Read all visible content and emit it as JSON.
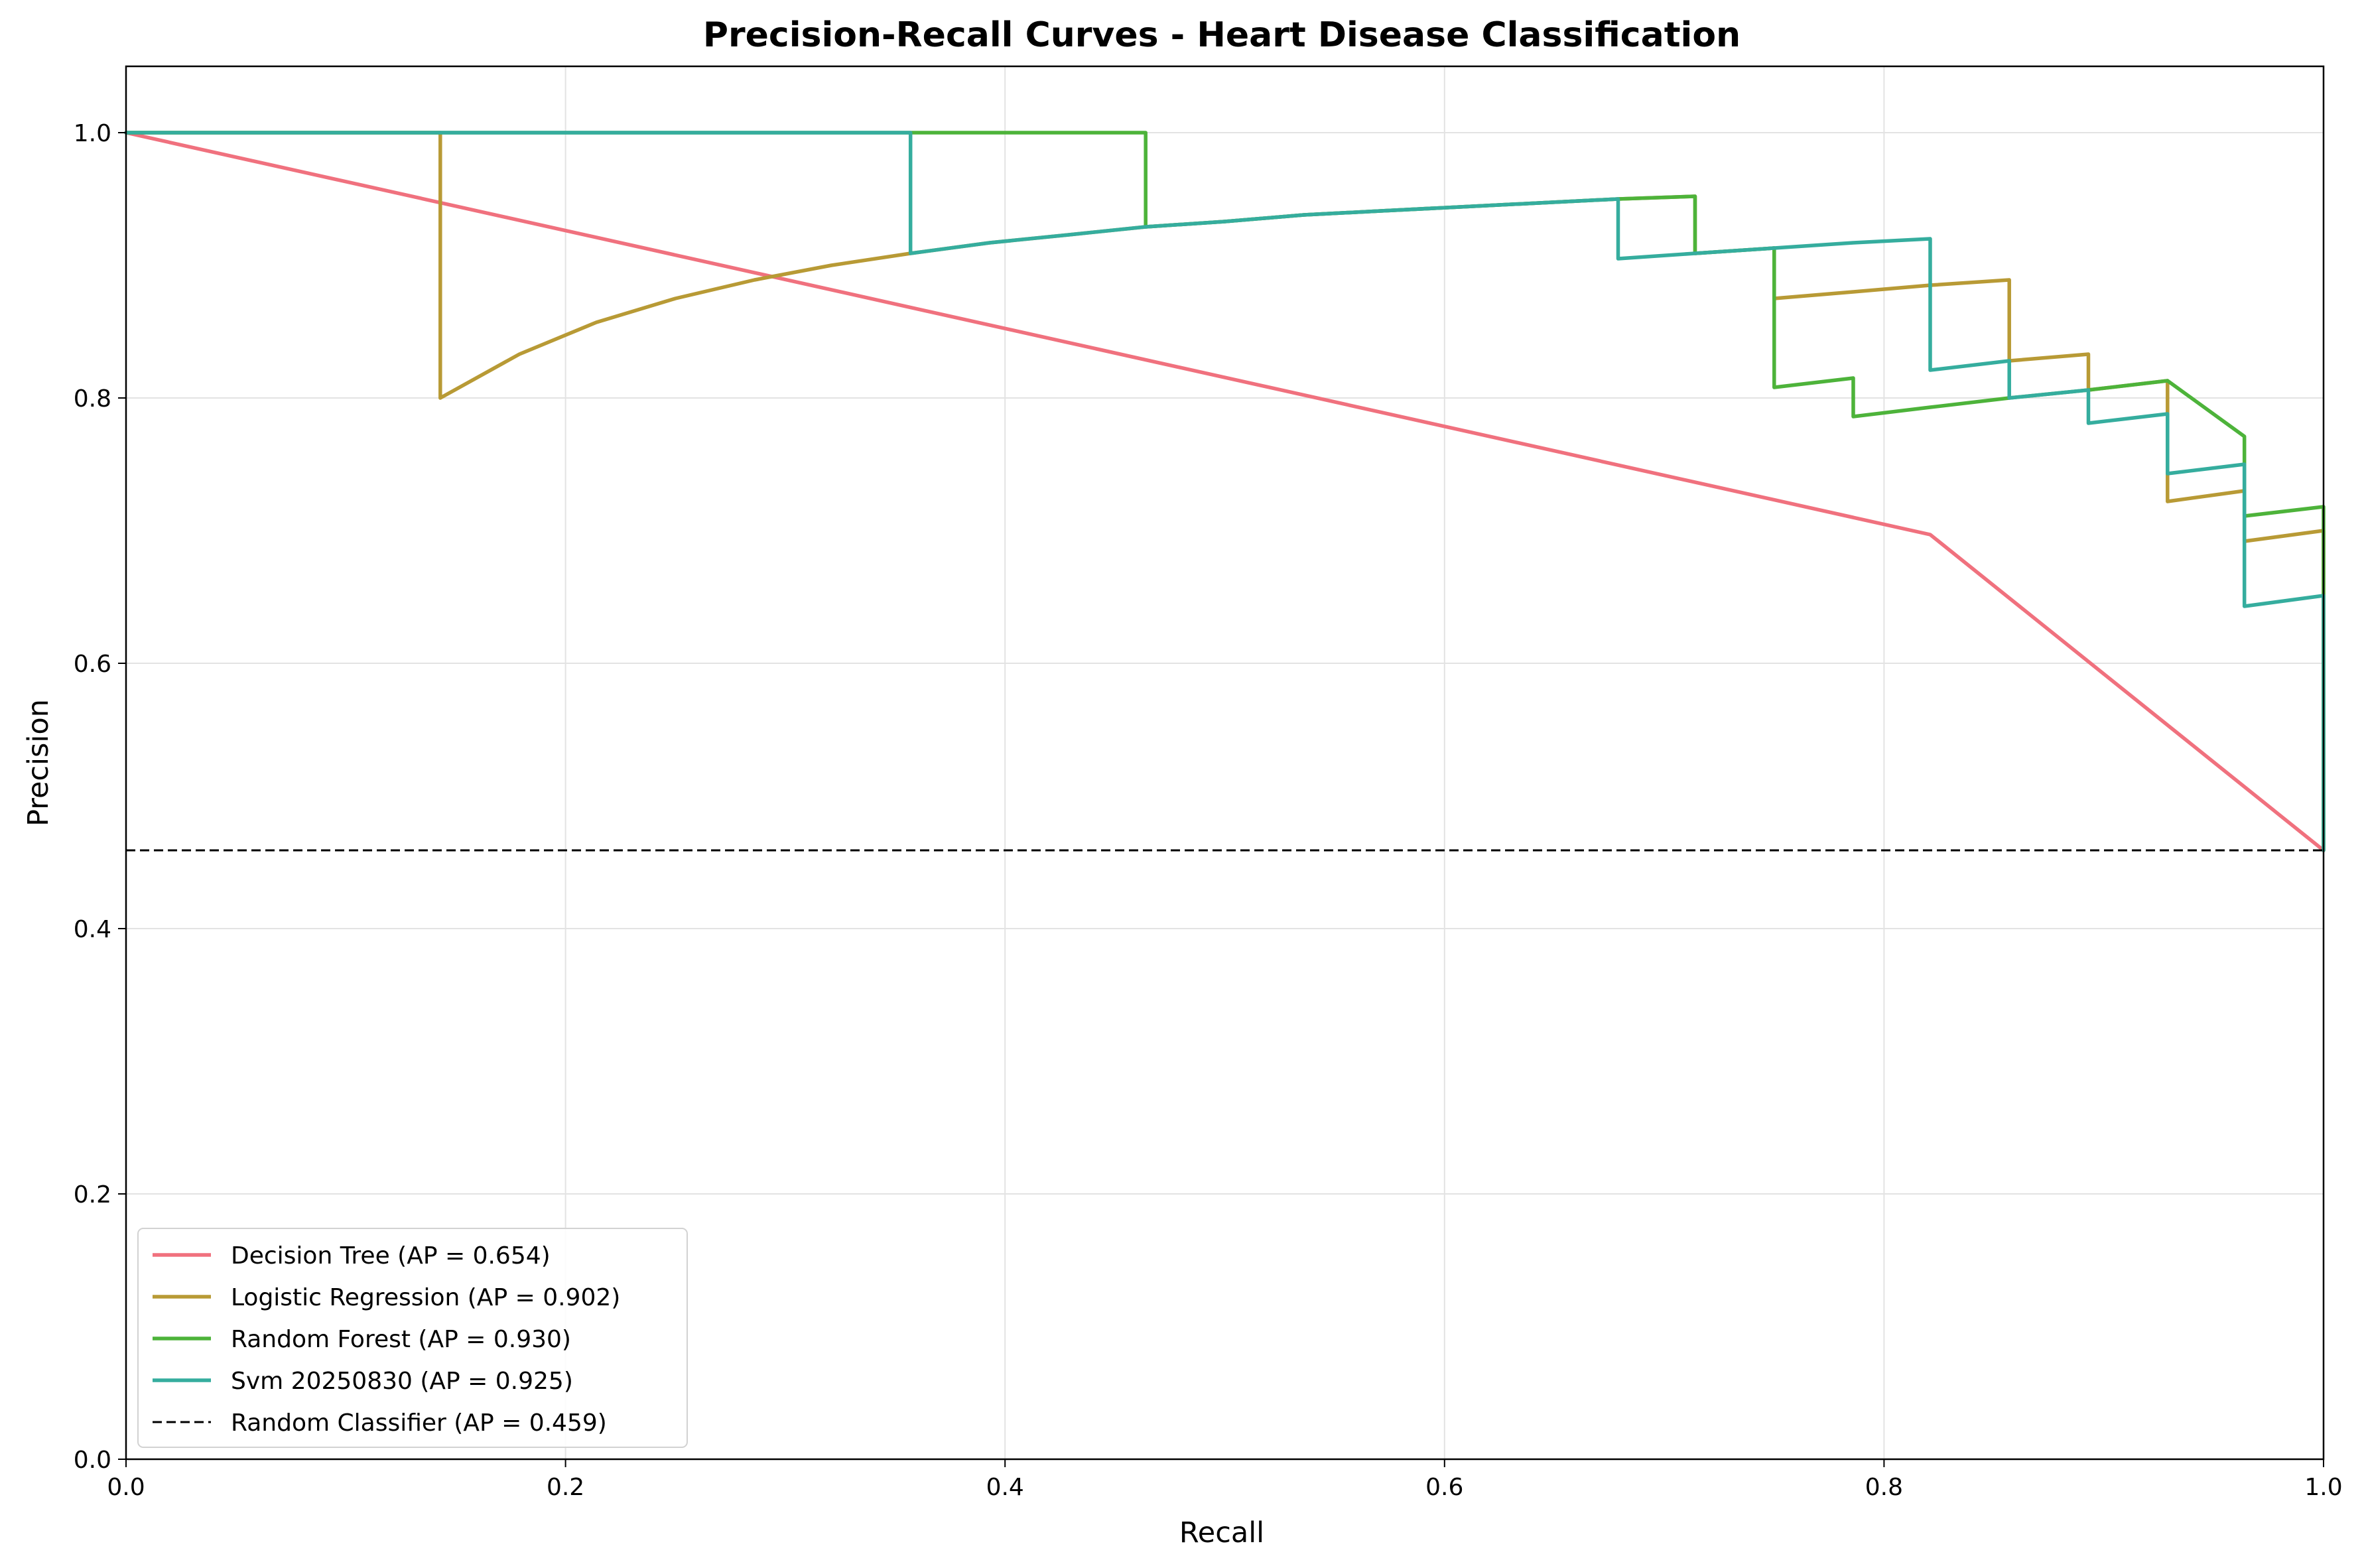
{
  "chart_data": {
    "type": "line",
    "title": "Precision-Recall Curves - Heart Disease Classification",
    "xlabel": "Recall",
    "ylabel": "Precision",
    "xlim": [
      0,
      1
    ],
    "ylim": [
      0,
      1.05
    ],
    "xticks": [
      0.0,
      0.2,
      0.4,
      0.6,
      0.8,
      1.0
    ],
    "xtick_labels": [
      "0.0",
      "0.2",
      "0.4",
      "0.6",
      "0.8",
      "1.0"
    ],
    "yticks": [
      0.0,
      0.2,
      0.4,
      0.6,
      0.8,
      1.0
    ],
    "ytick_labels": [
      "0.0",
      "0.2",
      "0.4",
      "0.6",
      "0.8",
      "1.0"
    ],
    "grid": true,
    "legend_position": "lower-left",
    "series": [
      {
        "name": "Decision Tree (AP = 0.654)",
        "color": "#f0717e",
        "dash": false,
        "points": [
          [
            0.0,
            1.0
          ],
          [
            0.821,
            0.697
          ],
          [
            1.0,
            0.459
          ]
        ]
      },
      {
        "name": "Logistic Regression (AP = 0.902)",
        "color": "#b89a35",
        "dash": false,
        "points": [
          [
            0.0,
            1.0
          ],
          [
            0.143,
            1.0
          ],
          [
            0.143,
            0.8
          ],
          [
            0.179,
            0.833
          ],
          [
            0.214,
            0.857
          ],
          [
            0.25,
            0.875
          ],
          [
            0.286,
            0.889
          ],
          [
            0.321,
            0.9
          ],
          [
            0.357,
            0.909
          ],
          [
            0.393,
            0.917
          ],
          [
            0.429,
            0.923
          ],
          [
            0.464,
            0.929
          ],
          [
            0.5,
            0.933
          ],
          [
            0.536,
            0.938
          ],
          [
            0.571,
            0.941
          ],
          [
            0.607,
            0.944
          ],
          [
            0.643,
            0.947
          ],
          [
            0.679,
            0.95
          ],
          [
            0.714,
            0.952
          ],
          [
            0.714,
            0.909
          ],
          [
            0.75,
            0.913
          ],
          [
            0.75,
            0.875
          ],
          [
            0.786,
            0.88
          ],
          [
            0.821,
            0.885
          ],
          [
            0.857,
            0.889
          ],
          [
            0.857,
            0.828
          ],
          [
            0.893,
            0.833
          ],
          [
            0.893,
            0.806
          ],
          [
            0.929,
            0.813
          ],
          [
            0.929,
            0.722
          ],
          [
            0.964,
            0.73
          ],
          [
            0.964,
            0.692
          ],
          [
            1.0,
            0.7
          ],
          [
            1.0,
            0.459
          ]
        ]
      },
      {
        "name": "Random Forest (AP = 0.930)",
        "color": "#4db33a",
        "dash": false,
        "points": [
          [
            0.0,
            1.0
          ],
          [
            0.464,
            1.0
          ],
          [
            0.464,
            0.929
          ],
          [
            0.5,
            0.933
          ],
          [
            0.536,
            0.938
          ],
          [
            0.571,
            0.941
          ],
          [
            0.607,
            0.944
          ],
          [
            0.643,
            0.947
          ],
          [
            0.679,
            0.95
          ],
          [
            0.714,
            0.952
          ],
          [
            0.714,
            0.909
          ],
          [
            0.75,
            0.913
          ],
          [
            0.75,
            0.808
          ],
          [
            0.786,
            0.815
          ],
          [
            0.786,
            0.786
          ],
          [
            0.821,
            0.793
          ],
          [
            0.857,
            0.8
          ],
          [
            0.893,
            0.806
          ],
          [
            0.929,
            0.813
          ],
          [
            0.964,
            0.771
          ],
          [
            0.964,
            0.711
          ],
          [
            1.0,
            0.718
          ],
          [
            1.0,
            0.459
          ]
        ]
      },
      {
        "name": "Svm 20250830 (AP = 0.925)",
        "color": "#35ad9e",
        "dash": false,
        "points": [
          [
            0.0,
            1.0
          ],
          [
            0.357,
            1.0
          ],
          [
            0.357,
            0.909
          ],
          [
            0.393,
            0.917
          ],
          [
            0.429,
            0.923
          ],
          [
            0.464,
            0.929
          ],
          [
            0.5,
            0.933
          ],
          [
            0.536,
            0.938
          ],
          [
            0.571,
            0.941
          ],
          [
            0.607,
            0.944
          ],
          [
            0.643,
            0.947
          ],
          [
            0.679,
            0.95
          ],
          [
            0.679,
            0.905
          ],
          [
            0.714,
            0.909
          ],
          [
            0.75,
            0.913
          ],
          [
            0.786,
            0.917
          ],
          [
            0.821,
            0.92
          ],
          [
            0.821,
            0.821
          ],
          [
            0.857,
            0.828
          ],
          [
            0.857,
            0.8
          ],
          [
            0.893,
            0.806
          ],
          [
            0.893,
            0.781
          ],
          [
            0.929,
            0.788
          ],
          [
            0.929,
            0.743
          ],
          [
            0.964,
            0.75
          ],
          [
            0.964,
            0.643
          ],
          [
            1.0,
            0.651
          ],
          [
            1.0,
            0.459
          ]
        ]
      },
      {
        "name": "Random Classifier (AP = 0.459)",
        "color": "#000000",
        "dash": true,
        "points": [
          [
            0.0,
            0.459
          ],
          [
            1.0,
            0.459
          ]
        ]
      }
    ]
  }
}
